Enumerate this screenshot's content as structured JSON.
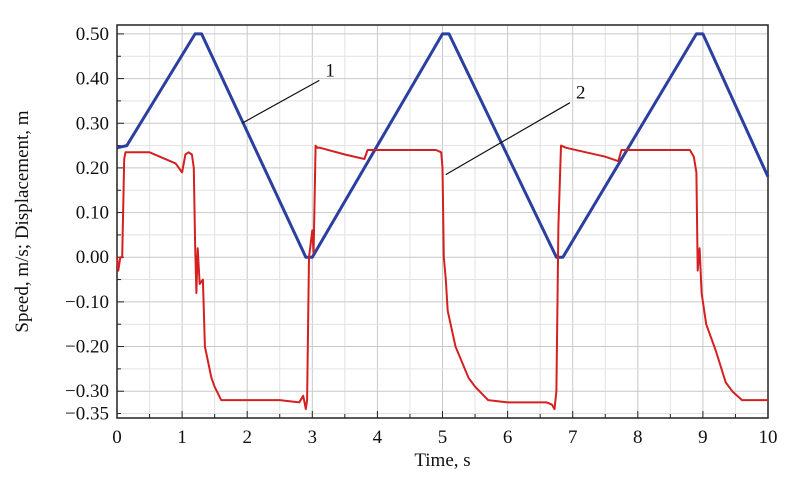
{
  "chart_data": {
    "type": "line",
    "title": "",
    "xlabel": "Time, s",
    "ylabel": "Speed, m/s; Displacement, m",
    "xlim": [
      0,
      10
    ],
    "ylim": [
      -0.36,
      0.52
    ],
    "grid": true,
    "x_ticks": [
      0,
      1,
      2,
      3,
      4,
      5,
      6,
      7,
      8,
      9,
      10
    ],
    "x_tick_labels": [
      "0",
      "1",
      "2",
      "3",
      "4",
      "5",
      "6",
      "7",
      "8",
      "9",
      "10"
    ],
    "y_ticks": [
      0.5,
      0.4,
      0.3,
      0.2,
      0.1,
      0.0,
      -0.1,
      -0.2,
      -0.3,
      -0.35
    ],
    "y_tick_labels": [
      "0.50",
      "0.40",
      "0.30",
      "0.20",
      "0.10",
      "0.00",
      "−0.10",
      "−0.20",
      "−0.30",
      "−0.35"
    ],
    "annotations": [
      {
        "text": "1",
        "series": 0,
        "point": [
          1.92,
          0.3
        ],
        "label_at": [
          3.2,
          0.405
        ]
      },
      {
        "text": "2",
        "series": 1,
        "point": [
          5.05,
          0.185
        ],
        "label_at": [
          7.05,
          0.355
        ]
      }
    ],
    "series": [
      {
        "color": "#2b3fa0",
        "x": [
          0,
          0.15,
          1.2,
          1.3,
          2.9,
          3.0,
          5.0,
          5.1,
          6.75,
          6.85,
          8.9,
          9.0,
          10.0
        ],
        "y": [
          0.245,
          0.25,
          0.5,
          0.5,
          0.0,
          0.0,
          0.5,
          0.5,
          0.0,
          0.0,
          0.5,
          0.5,
          0.18
        ]
      },
      {
        "color": "#d42020",
        "x": [
          0,
          0.02,
          0.05,
          0.08,
          0.11,
          0.13,
          0.5,
          0.9,
          1.0,
          1.05,
          1.1,
          1.15,
          1.18,
          1.2,
          1.22,
          1.24,
          1.27,
          1.32,
          1.35,
          1.45,
          1.5,
          1.6,
          2.5,
          2.8,
          2.86,
          2.9,
          2.92,
          2.95,
          3.0,
          3.02,
          3.05,
          3.08,
          3.12,
          3.5,
          3.8,
          3.85,
          4.9,
          4.98,
          5.0,
          5.02,
          5.05,
          5.08,
          5.2,
          5.4,
          5.5,
          5.7,
          6.0,
          6.6,
          6.68,
          6.72,
          6.75,
          6.78,
          6.82,
          6.9,
          7.5,
          7.7,
          7.75,
          8.8,
          8.86,
          8.9,
          8.92,
          8.95,
          8.98,
          9.05,
          9.2,
          9.35,
          9.45,
          9.6,
          10.0
        ],
        "y": [
          0.0,
          -0.03,
          0.0,
          0.0,
          0.22,
          0.235,
          0.235,
          0.21,
          0.19,
          0.23,
          0.235,
          0.23,
          0.2,
          0.03,
          -0.08,
          0.02,
          -0.06,
          -0.05,
          -0.2,
          -0.27,
          -0.29,
          -0.32,
          -0.32,
          -0.325,
          -0.31,
          -0.34,
          -0.32,
          0.0,
          0.06,
          0.01,
          0.25,
          0.245,
          0.245,
          0.23,
          0.22,
          0.24,
          0.24,
          0.235,
          0.2,
          0.0,
          -0.05,
          -0.12,
          -0.2,
          -0.27,
          -0.29,
          -0.32,
          -0.325,
          -0.325,
          -0.33,
          -0.34,
          -0.3,
          0.07,
          0.25,
          0.245,
          0.225,
          0.215,
          0.24,
          0.24,
          0.225,
          0.19,
          -0.03,
          0.02,
          -0.08,
          -0.15,
          -0.21,
          -0.28,
          -0.3,
          -0.32,
          -0.32
        ]
      }
    ]
  }
}
